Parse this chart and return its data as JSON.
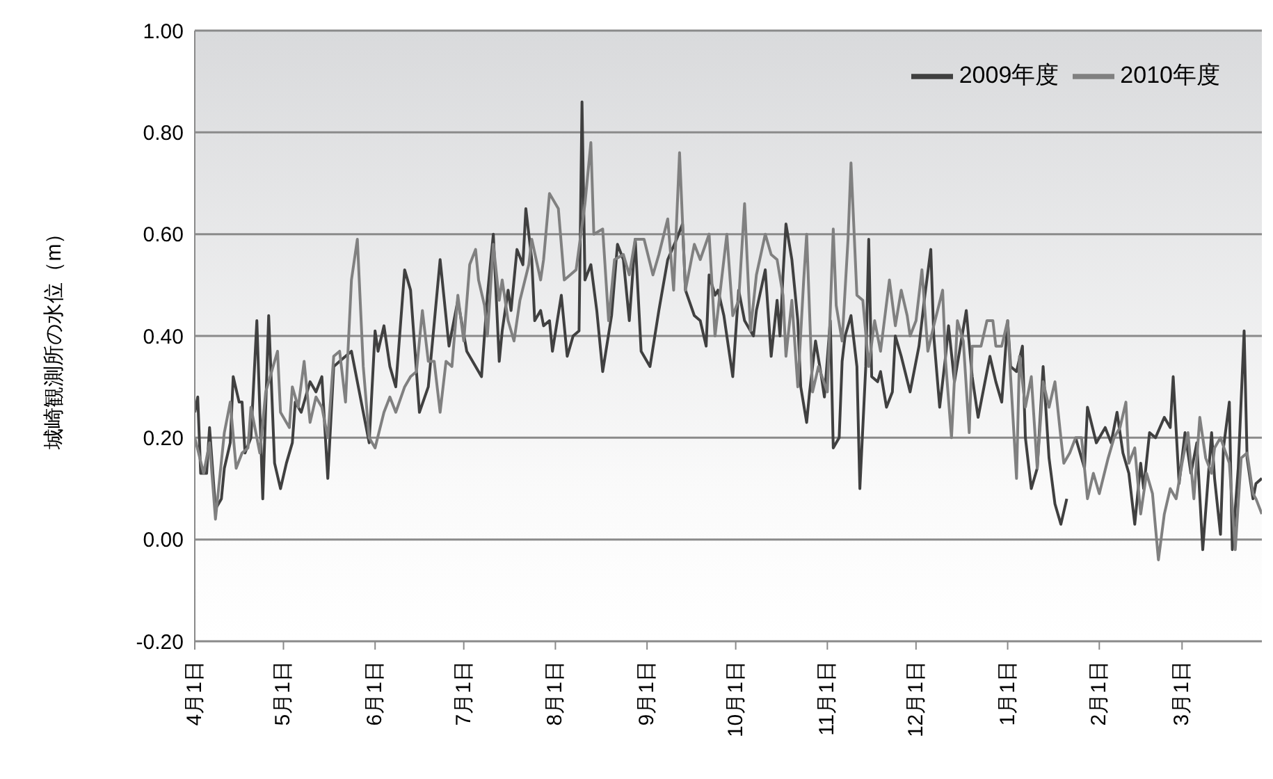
{
  "chart_data": {
    "type": "line",
    "ylabel": "城崎観測所の水位（m）",
    "xlim": [
      "2009-04-01",
      "2010-03-28"
    ],
    "xticks": [
      {
        "value": "2009-04-01",
        "label": "4月1日"
      },
      {
        "value": "2009-05-01",
        "label": "5月1日"
      },
      {
        "value": "2009-06-01",
        "label": "6月1日"
      },
      {
        "value": "2009-07-01",
        "label": "7月1日"
      },
      {
        "value": "2009-08-01",
        "label": "8月1日"
      },
      {
        "value": "2009-09-01",
        "label": "9月1日"
      },
      {
        "value": "2009-10-01",
        "label": "10月1日"
      },
      {
        "value": "2009-11-01",
        "label": "11月1日"
      },
      {
        "value": "2009-12-01",
        "label": "12月1日"
      },
      {
        "value": "2010-01-01",
        "label": "1月1日"
      },
      {
        "value": "2010-02-01",
        "label": "2月1日"
      },
      {
        "value": "2010-03-01",
        "label": "3月1日"
      }
    ],
    "ylim": [
      -0.2,
      1.0
    ],
    "yticks": [
      {
        "value": -0.2,
        "label": "-0.20"
      },
      {
        "value": 0,
        "label": "0.00"
      },
      {
        "value": 0.2,
        "label": "0.20"
      },
      {
        "value": 0.4,
        "label": "0.40"
      },
      {
        "value": 0.6,
        "label": "0.60"
      },
      {
        "value": 0.8,
        "label": "0.80"
      },
      {
        "value": 1.0,
        "label": "1.00"
      }
    ],
    "grid": "y",
    "legend": "top right",
    "line_style": "solid",
    "series": [
      {
        "name": "2009年度",
        "color": "#404040",
        "x": [
          "2009-04-01",
          "2009-04-02",
          "2009-04-03",
          "2009-04-05",
          "2009-04-06",
          "2009-04-08",
          "2009-04-10",
          "2009-04-11",
          "2009-04-13",
          "2009-04-14",
          "2009-04-16",
          "2009-04-17",
          "2009-04-18",
          "2009-04-20",
          "2009-04-22",
          "2009-04-24",
          "2009-04-26",
          "2009-04-28",
          "2009-04-30",
          "2009-05-02",
          "2009-05-04",
          "2009-05-05",
          "2009-05-07",
          "2009-05-10",
          "2009-05-12",
          "2009-05-14",
          "2009-05-16",
          "2009-05-18",
          "2009-05-20",
          "2009-05-24",
          "2009-05-26",
          "2009-05-30",
          "2009-06-01",
          "2009-06-02",
          "2009-06-04",
          "2009-06-06",
          "2009-06-08",
          "2009-06-11",
          "2009-06-13",
          "2009-06-16",
          "2009-06-19",
          "2009-06-23",
          "2009-06-26",
          "2009-06-29",
          "2009-07-02",
          "2009-07-07",
          "2009-07-09",
          "2009-07-11",
          "2009-07-13",
          "2009-07-14",
          "2009-07-16",
          "2009-07-17",
          "2009-07-19",
          "2009-07-21",
          "2009-07-22",
          "2009-07-24",
          "2009-07-25",
          "2009-07-27",
          "2009-07-28",
          "2009-07-30",
          "2009-07-31",
          "2009-08-03",
          "2009-08-05",
          "2009-08-07",
          "2009-08-09",
          "2009-08-10",
          "2009-08-11",
          "2009-08-13",
          "2009-08-15",
          "2009-08-17",
          "2009-08-20",
          "2009-08-22",
          "2009-08-24",
          "2009-08-26",
          "2009-08-28",
          "2009-08-30",
          "2009-09-02",
          "2009-09-05",
          "2009-09-08",
          "2009-09-11",
          "2009-09-13",
          "2009-09-14",
          "2009-09-17",
          "2009-09-19",
          "2009-09-21",
          "2009-09-22",
          "2009-09-24",
          "2009-09-25",
          "2009-09-27",
          "2009-09-30",
          "2009-10-02",
          "2009-10-04",
          "2009-10-07",
          "2009-10-08",
          "2009-10-11",
          "2009-10-13",
          "2009-10-15",
          "2009-10-16",
          "2009-10-17",
          "2009-10-18",
          "2009-10-20",
          "2009-10-22",
          "2009-10-23",
          "2009-10-25",
          "2009-10-26",
          "2009-10-28",
          "2009-10-30",
          "2009-10-31",
          "2009-11-02",
          "2009-11-03",
          "2009-11-05",
          "2009-11-06",
          "2009-11-07",
          "2009-11-09",
          "2009-11-11",
          "2009-11-12",
          "2009-11-14",
          "2009-11-15",
          "2009-11-16",
          "2009-11-18",
          "2009-11-19",
          "2009-11-21",
          "2009-11-23",
          "2009-11-24",
          "2009-11-26",
          "2009-11-29",
          "2009-12-02",
          "2009-12-04",
          "2009-12-06",
          "2009-12-07",
          "2009-12-09",
          "2009-12-11",
          "2009-12-12",
          "2009-12-14",
          "2009-12-16",
          "2009-12-18",
          "2009-12-20",
          "2009-12-22",
          "2009-12-24",
          "2009-12-26",
          "2009-12-28",
          "2009-12-30",
          "2010-01-01",
          "2010-01-02",
          "2010-01-04",
          "2010-01-06",
          "2010-01-07",
          "2010-01-09",
          "2010-01-11",
          "2010-01-13",
          "2010-01-15",
          "2010-01-17",
          "2010-01-19",
          "2010-01-21",
          "2010-01-22",
          "2010-01-24",
          "2010-01-25",
          "2010-01-27",
          "2010-01-28",
          "2010-01-31",
          "2010-02-03",
          "2010-02-05",
          "2010-02-07",
          "2010-02-09",
          "2010-02-11",
          "2010-02-13",
          "2010-02-15",
          "2010-02-16",
          "2010-02-18",
          "2010-02-20",
          "2010-02-23",
          "2010-02-25",
          "2010-02-26",
          "2010-02-28",
          "2010-03-02",
          "2010-03-04",
          "2010-03-06",
          "2010-03-08",
          "2010-03-11",
          "2010-03-12",
          "2010-03-14",
          "2010-03-15",
          "2010-03-17",
          "2010-03-18",
          "2010-03-20",
          "2010-03-22",
          "2010-03-23",
          "2010-03-25",
          "2010-03-26",
          "2010-03-28"
        ],
        "values": [
          0.25,
          0.28,
          0.13,
          0.13,
          0.22,
          0.06,
          0.08,
          0.14,
          0.19,
          0.32,
          0.27,
          0.27,
          0.17,
          0.2,
          0.43,
          0.08,
          0.44,
          0.15,
          0.1,
          0.15,
          0.19,
          0.27,
          0.25,
          0.31,
          0.29,
          0.32,
          0.12,
          0.34,
          0.35,
          0.37,
          0.31,
          0.19,
          0.41,
          0.37,
          0.42,
          0.34,
          0.3,
          0.53,
          0.49,
          0.25,
          0.3,
          0.55,
          0.38,
          0.47,
          0.37,
          0.32,
          0.48,
          0.6,
          0.35,
          0.41,
          0.49,
          0.45,
          0.57,
          0.54,
          0.65,
          0.55,
          0.43,
          0.45,
          0.42,
          0.43,
          0.37,
          0.48,
          0.36,
          0.4,
          0.41,
          0.86,
          0.51,
          0.54,
          0.45,
          0.33,
          0.44,
          0.58,
          0.55,
          0.43,
          0.59,
          0.37,
          0.34,
          0.45,
          0.55,
          0.59,
          0.62,
          0.49,
          0.44,
          0.43,
          0.38,
          0.52,
          0.48,
          0.49,
          0.44,
          0.32,
          0.49,
          0.43,
          0.4,
          0.45,
          0.53,
          0.36,
          0.47,
          0.4,
          0.52,
          0.62,
          0.55,
          0.43,
          0.3,
          0.23,
          0.29,
          0.39,
          0.32,
          0.28,
          0.43,
          0.18,
          0.2,
          0.35,
          0.4,
          0.44,
          0.34,
          0.1,
          0.34,
          0.59,
          0.32,
          0.31,
          0.33,
          0.26,
          0.29,
          0.4,
          0.36,
          0.29,
          0.38,
          0.48,
          0.57,
          0.4,
          0.26,
          0.36,
          0.42,
          0.31,
          0.38,
          0.45,
          0.32,
          0.24,
          0.3,
          0.36,
          0.31,
          0.27,
          0.43,
          0.34,
          0.33,
          0.38,
          0.2,
          0.1,
          0.14,
          0.34,
          0.16,
          0.07,
          0.03,
          0.08,
          null,
          0.2,
          0.18,
          0.14,
          0.26,
          0.19,
          0.22,
          0.19,
          0.25,
          0.17,
          0.13,
          0.03,
          0.15,
          0.1,
          0.21,
          0.2,
          0.24,
          0.22,
          0.32,
          0.11,
          0.21,
          0.13,
          0.19,
          -0.02,
          0.21,
          0.12,
          0.01,
          0.18,
          0.27,
          -0.02,
          0.14,
          0.41,
          0.16,
          0.08,
          0.11,
          0.12
        ]
      },
      {
        "name": "2010年度",
        "color": "#808080",
        "x": [
          "2009-04-01",
          "2009-04-04",
          "2009-04-06",
          "2009-04-08",
          "2009-04-11",
          "2009-04-13",
          "2009-04-15",
          "2009-04-17",
          "2009-04-19",
          "2009-04-20",
          "2009-04-23",
          "2009-04-25",
          "2009-04-29",
          "2009-04-30",
          "2009-05-03",
          "2009-05-04",
          "2009-05-06",
          "2009-05-08",
          "2009-05-10",
          "2009-05-12",
          "2009-05-14",
          "2009-05-16",
          "2009-05-18",
          "2009-05-20",
          "2009-05-22",
          "2009-05-24",
          "2009-05-26",
          "2009-05-28",
          "2009-05-30",
          "2009-06-01",
          "2009-06-04",
          "2009-06-06",
          "2009-06-08",
          "2009-06-11",
          "2009-06-13",
          "2009-06-15",
          "2009-06-17",
          "2009-06-19",
          "2009-06-21",
          "2009-06-23",
          "2009-06-25",
          "2009-06-27",
          "2009-06-29",
          "2009-07-01",
          "2009-07-03",
          "2009-07-05",
          "2009-07-06",
          "2009-07-08",
          "2009-07-09",
          "2009-07-11",
          "2009-07-13",
          "2009-07-14",
          "2009-07-16",
          "2009-07-18",
          "2009-07-20",
          "2009-07-23",
          "2009-07-24",
          "2009-07-27",
          "2009-07-28",
          "2009-07-30",
          "2009-08-02",
          "2009-08-04",
          "2009-08-06",
          "2009-08-08",
          "2009-08-11",
          "2009-08-13",
          "2009-08-14",
          "2009-08-17",
          "2009-08-19",
          "2009-08-21",
          "2009-08-24",
          "2009-08-26",
          "2009-08-28",
          "2009-08-31",
          "2009-09-03",
          "2009-09-05",
          "2009-09-08",
          "2009-09-10",
          "2009-09-12",
          "2009-09-14",
          "2009-09-17",
          "2009-09-19",
          "2009-09-22",
          "2009-09-24",
          "2009-09-28",
          "2009-09-30",
          "2009-10-02",
          "2009-10-04",
          "2009-10-06",
          "2009-10-08",
          "2009-10-11",
          "2009-10-13",
          "2009-10-15",
          "2009-10-17",
          "2009-10-18",
          "2009-10-20",
          "2009-10-22",
          "2009-10-24",
          "2009-10-25",
          "2009-10-27",
          "2009-10-29",
          "2009-11-01",
          "2009-11-03",
          "2009-11-04",
          "2009-11-06",
          "2009-11-08",
          "2009-11-09",
          "2009-11-11",
          "2009-11-13",
          "2009-11-15",
          "2009-11-17",
          "2009-11-19",
          "2009-11-22",
          "2009-11-24",
          "2009-11-26",
          "2009-11-28",
          "2009-11-29",
          "2009-12-01",
          "2009-12-03",
          "2009-12-05",
          "2009-12-07",
          "2009-12-10",
          "2009-12-11",
          "2009-12-13",
          "2009-12-15",
          "2009-12-17",
          "2009-12-19",
          "2009-12-20",
          "2009-12-23",
          "2009-12-25",
          "2009-12-27",
          "2009-12-28",
          "2009-12-30",
          "2010-01-01",
          "2010-01-02",
          "2010-01-04",
          "2010-01-05",
          "2010-01-07",
          "2010-01-09",
          "2010-01-11",
          "2010-01-13",
          "2010-01-15",
          "2010-01-17",
          "2010-01-19",
          "2010-01-20",
          "2010-01-22",
          "2010-01-24",
          "2010-01-26",
          "2010-01-28",
          "2010-01-30",
          "2010-02-01",
          "2010-02-04",
          "2010-02-06",
          "2010-02-08",
          "2010-02-10",
          "2010-02-11",
          "2010-02-13",
          "2010-02-15",
          "2010-02-17",
          "2010-02-19",
          "2010-02-21",
          "2010-02-23",
          "2010-02-25",
          "2010-02-27",
          "2010-03-01",
          "2010-03-03",
          "2010-03-05",
          "2010-03-07",
          "2010-03-09",
          "2010-03-11",
          "2010-03-12",
          "2010-03-14",
          "2010-03-17",
          "2010-03-19",
          "2010-03-21",
          "2010-03-23",
          "2010-03-25",
          "2010-03-26",
          "2010-03-28"
        ],
        "values": [
          0.2,
          0.13,
          0.19,
          0.04,
          0.21,
          0.27,
          0.14,
          0.17,
          0.18,
          0.26,
          0.17,
          0.29,
          0.37,
          0.25,
          0.22,
          0.3,
          0.26,
          0.35,
          0.23,
          0.28,
          0.26,
          0.2,
          0.36,
          0.37,
          0.27,
          0.51,
          0.59,
          0.34,
          0.2,
          0.18,
          0.25,
          0.28,
          0.25,
          0.3,
          0.32,
          0.33,
          0.45,
          0.35,
          0.35,
          0.25,
          0.35,
          0.34,
          0.48,
          0.39,
          0.54,
          0.57,
          0.51,
          0.46,
          0.4,
          0.58,
          0.47,
          0.51,
          0.43,
          0.39,
          0.47,
          0.54,
          0.59,
          0.51,
          0.55,
          0.68,
          0.65,
          0.51,
          0.52,
          0.53,
          0.66,
          0.78,
          0.6,
          0.61,
          0.43,
          0.55,
          0.56,
          0.52,
          0.59,
          0.59,
          0.52,
          0.56,
          0.63,
          0.49,
          0.76,
          0.49,
          0.58,
          0.55,
          0.6,
          0.4,
          0.6,
          0.44,
          0.47,
          0.66,
          0.41,
          0.52,
          0.6,
          0.56,
          0.55,
          0.48,
          0.36,
          0.47,
          0.3,
          0.51,
          0.6,
          0.29,
          0.34,
          0.29,
          0.61,
          0.46,
          0.39,
          0.59,
          0.74,
          0.48,
          0.47,
          0.34,
          0.43,
          0.37,
          0.51,
          0.42,
          0.49,
          0.44,
          0.4,
          0.43,
          0.53,
          0.37,
          0.42,
          0.49,
          0.35,
          0.2,
          0.43,
          0.39,
          0.21,
          0.38,
          0.38,
          0.43,
          0.43,
          0.38,
          0.38,
          0.43,
          0.32,
          0.12,
          0.36,
          0.26,
          0.32,
          0.14,
          0.31,
          0.26,
          0.31,
          0.2,
          0.15,
          0.17,
          0.2,
          0.2,
          0.08,
          0.13,
          0.09,
          0.16,
          0.2,
          0.22,
          0.27,
          0.15,
          0.18,
          0.05,
          0.13,
          0.09,
          -0.04,
          0.05,
          0.1,
          0.08,
          0.15,
          0.21,
          0.08,
          0.24,
          0.16,
          0.13,
          0.18,
          0.2,
          0.15,
          -0.02,
          0.16,
          0.17,
          0.09,
          0.08,
          0.05
        ]
      }
    ]
  }
}
